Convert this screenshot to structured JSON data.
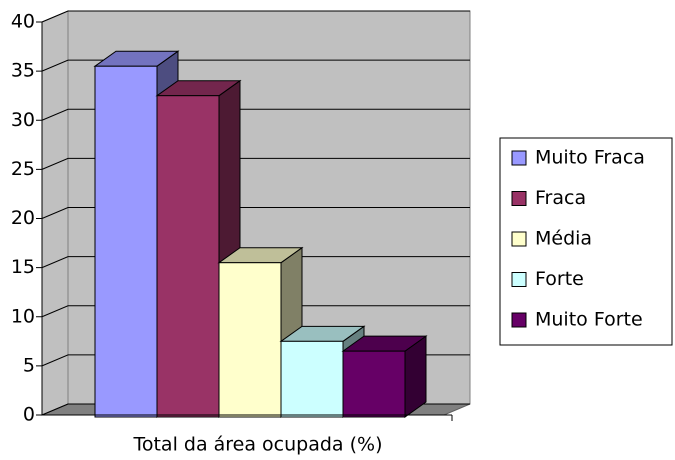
{
  "chart_data": {
    "type": "bar3d",
    "categories": [
      "Total da área ocupada (%)"
    ],
    "series": [
      {
        "name": "Muito Fraca",
        "color": "#9999ff",
        "values": [
          35.5
        ]
      },
      {
        "name": "Fraca",
        "color": "#993366",
        "values": [
          32.5
        ]
      },
      {
        "name": "Média",
        "color": "#ffffcc",
        "values": [
          15.5
        ]
      },
      {
        "name": "Forte",
        "color": "#ccffff",
        "values": [
          7.5
        ]
      },
      {
        "name": "Muito Forte",
        "color": "#660066",
        "values": [
          6.5
        ]
      }
    ],
    "ylim": [
      0,
      40
    ],
    "yticks": [
      0,
      5,
      10,
      15,
      20,
      25,
      30,
      35,
      40
    ],
    "grid": true,
    "legend": "right"
  }
}
